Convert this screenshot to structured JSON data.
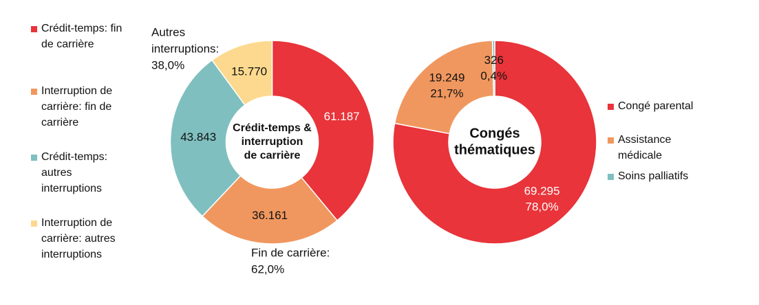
{
  "chart_data": [
    {
      "type": "donut",
      "title": [
        "Crédit-temps &",
        "interruption",
        "de carrière"
      ],
      "categories": [
        "Crédit-temps: fin de carrière",
        "Interruption de carrière: fin de carrière",
        "Crédit-temps: autres interruptions",
        "Interruption de carrière: autres interruptions"
      ],
      "values": [
        61187,
        36161,
        43843,
        15770
      ],
      "value_labels": [
        "61.187",
        "36.161",
        "43.843",
        "15.770"
      ],
      "colors": [
        "#e8343a",
        "#f0975f",
        "#80bfbf",
        "#fcd98e"
      ],
      "annotations": [
        [
          "Fin de carrière:",
          "62,0%"
        ],
        [
          "Autres",
          "interruptions:",
          "38,0%"
        ]
      ],
      "legend": "left"
    },
    {
      "type": "donut",
      "title": [
        "Congés",
        "thématiques"
      ],
      "categories": [
        "Congé parental",
        "Assistance médicale",
        "Soins palliatifs"
      ],
      "values": [
        69295,
        19249,
        326
      ],
      "value_labels": [
        "69.295",
        "19.249",
        "326"
      ],
      "percent_labels": [
        "78,0%",
        "21,7%",
        "0,4%"
      ],
      "colors": [
        "#e8343a",
        "#f0975f",
        "#80bfbf"
      ],
      "legend": "right"
    }
  ]
}
